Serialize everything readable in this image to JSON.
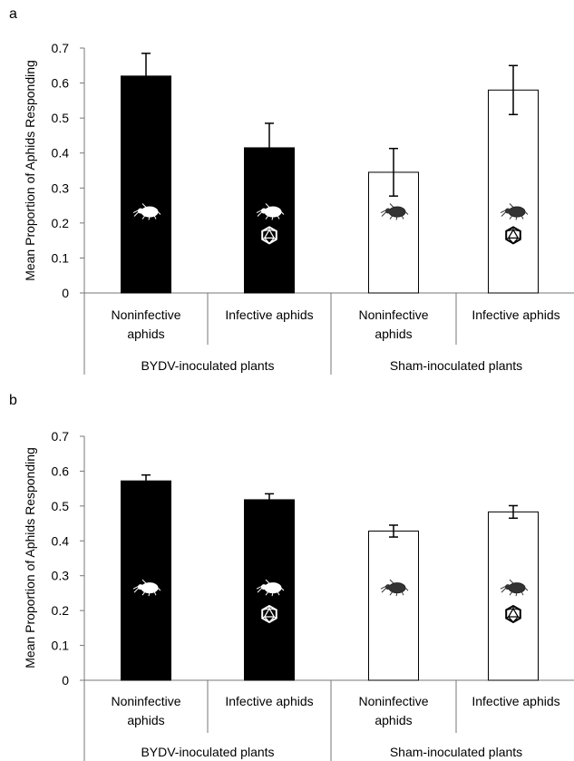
{
  "chart_data": [
    {
      "panel_label": "a",
      "type": "bar",
      "ylabel": "Mean Proportion of Aphids Responding",
      "ylim": [
        0,
        0.7
      ],
      "yticks": [
        "0",
        "0.1",
        "0.2",
        "0.3",
        "0.4",
        "0.5",
        "0.6",
        "0.7"
      ],
      "categories": [
        "Noninfective aphids",
        "Infective aphids",
        "Noninfective aphids",
        "Infective aphids"
      ],
      "groups": [
        "BYDV-inoculated plants",
        "Sham-inoculated plants"
      ],
      "values": [
        0.62,
        0.415,
        0.345,
        0.58
      ],
      "errors": [
        0.065,
        0.07,
        0.068,
        0.07
      ],
      "bar_colors": [
        "#000000",
        "#000000",
        "#ffffff",
        "#ffffff"
      ],
      "icons": [
        [
          "aphid-icon"
        ],
        [
          "aphid-icon",
          "virus-icon"
        ],
        [
          "aphid-icon"
        ],
        [
          "aphid-icon",
          "virus-icon"
        ]
      ]
    },
    {
      "panel_label": "b",
      "type": "bar",
      "ylabel": "Mean Proportion of Aphids Responding",
      "ylim": [
        0,
        0.7
      ],
      "yticks": [
        "0",
        "0.1",
        "0.2",
        "0.3",
        "0.4",
        "0.5",
        "0.6",
        "0.7"
      ],
      "categories": [
        "Noninfective aphids",
        "Infective aphids",
        "Noninfective aphids",
        "Infective aphids"
      ],
      "groups": [
        "BYDV-inoculated plants",
        "Sham-inoculated plants"
      ],
      "values": [
        0.572,
        0.518,
        0.428,
        0.483
      ],
      "errors": [
        0.017,
        0.017,
        0.017,
        0.018
      ],
      "bar_colors": [
        "#000000",
        "#000000",
        "#ffffff",
        "#ffffff"
      ],
      "icons": [
        [
          "aphid-icon"
        ],
        [
          "aphid-icon",
          "virus-icon"
        ],
        [
          "aphid-icon"
        ],
        [
          "aphid-icon",
          "virus-icon"
        ]
      ]
    }
  ]
}
